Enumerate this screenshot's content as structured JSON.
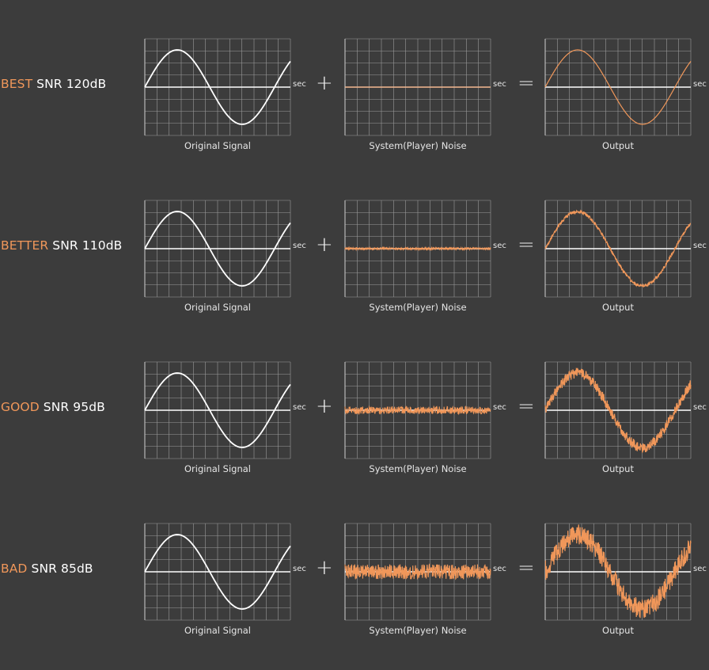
{
  "colors": {
    "background": "#3c3c3c",
    "grid": "#9a9a9a",
    "signal": "#ffffff",
    "noise": "#f0975a",
    "grade_accent": "#f0975a"
  },
  "captions": {
    "signal": "Original Signal",
    "noise": "System(Player) Noise",
    "output": "Output"
  },
  "axis_unit": "sec",
  "operators": {
    "plus": "+",
    "equals": "="
  },
  "rows": [
    {
      "grade": "BEST",
      "snr": "SNR 120dB",
      "noise_level": 0.0
    },
    {
      "grade": "BETTER",
      "snr": "SNR 110dB",
      "noise_level": 0.02
    },
    {
      "grade": "GOOD",
      "snr": "SNR 95dB",
      "noise_level": 0.07
    },
    {
      "grade": "BAD",
      "snr": "SNR 85dB",
      "noise_level": 0.14
    }
  ]
}
